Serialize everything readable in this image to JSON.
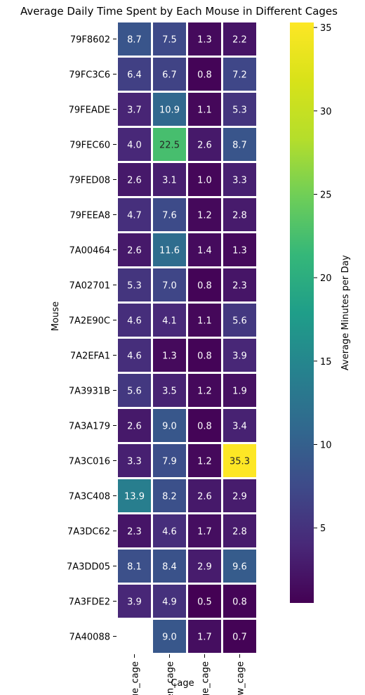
{
  "chart_data": {
    "type": "heatmap",
    "title": "Average Daily Time Spent by Each Mouse in Different Cages",
    "xlabel": "Cage",
    "ylabel": "Mouse",
    "colorbar_label": "Average Minutes per Day",
    "colormap": "viridis",
    "color_range": [
      0.5,
      35.3
    ],
    "colorbar_ticks": [
      5,
      10,
      15,
      20,
      25,
      30,
      35
    ],
    "columns": [
      "blue_cage",
      "green_cage",
      "orange_cage",
      "yellow_cage"
    ],
    "rows": [
      "79F8602",
      "79FC3C6",
      "79FEADE",
      "79FEC60",
      "79FED08",
      "79FEEA8",
      "7A00464",
      "7A02701",
      "7A2E90C",
      "7A2EFA1",
      "7A3931B",
      "7A3A179",
      "7A3C016",
      "7A3C408",
      "7A3DC62",
      "7A3DD05",
      "7A3FDE2",
      "7A40088"
    ],
    "values": [
      [
        8.7,
        7.5,
        1.3,
        2.2
      ],
      [
        6.4,
        6.7,
        0.8,
        7.2
      ],
      [
        3.7,
        10.9,
        1.1,
        5.3
      ],
      [
        4.0,
        22.5,
        2.6,
        8.7
      ],
      [
        2.6,
        3.1,
        1.0,
        3.3
      ],
      [
        4.7,
        7.6,
        1.2,
        2.8
      ],
      [
        2.6,
        11.6,
        1.4,
        1.3
      ],
      [
        5.3,
        7.0,
        0.8,
        2.3
      ],
      [
        4.6,
        4.1,
        1.1,
        5.6
      ],
      [
        4.6,
        1.3,
        0.8,
        3.9
      ],
      [
        5.6,
        3.5,
        1.2,
        1.9
      ],
      [
        2.6,
        9.0,
        0.8,
        3.4
      ],
      [
        3.3,
        7.9,
        1.2,
        35.3
      ],
      [
        13.9,
        8.2,
        2.6,
        2.9
      ],
      [
        2.3,
        4.6,
        1.7,
        2.8
      ],
      [
        8.1,
        8.4,
        2.9,
        9.6
      ],
      [
        3.9,
        4.9,
        0.5,
        0.8
      ],
      [
        null,
        9.0,
        1.7,
        0.7
      ]
    ],
    "grid": false
  }
}
